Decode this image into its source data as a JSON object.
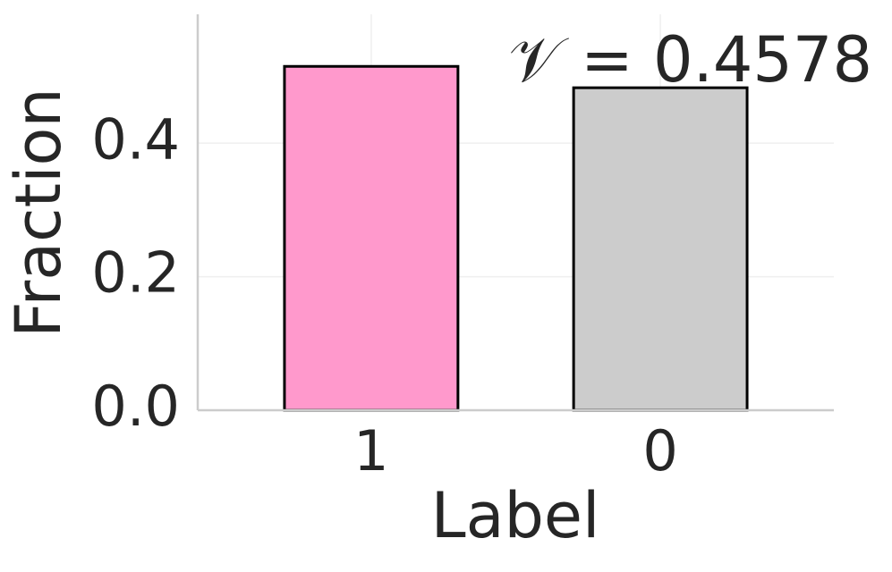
{
  "chart_data": {
    "type": "bar",
    "x_label": "Label",
    "y_label": "Fraction",
    "annotation": "𝒱 = 0.4578",
    "categories": [
      "1",
      "0"
    ],
    "values": [
      0.515,
      0.483
    ],
    "colors": [
      "#ff99cc",
      "#cccccc"
    ],
    "ylim": [
      0,
      0.593
    ],
    "yticks": [
      {
        "value": 0,
        "label": "0.0"
      },
      0.2,
      0.4
    ],
    "grid": true
  }
}
